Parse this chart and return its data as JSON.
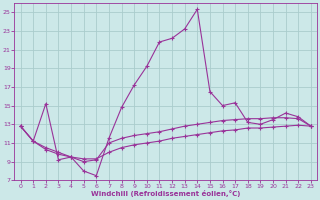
{
  "xlabel": "Windchill (Refroidissement éolien,°C)",
  "background_color": "#cce8e8",
  "grid_color": "#aacccc",
  "line_color": "#993399",
  "xlim": [
    -0.5,
    23.5
  ],
  "ylim": [
    7,
    26
  ],
  "xticks": [
    0,
    1,
    2,
    3,
    4,
    5,
    6,
    7,
    8,
    9,
    10,
    11,
    12,
    13,
    14,
    15,
    16,
    17,
    18,
    19,
    20,
    21,
    22,
    23
  ],
  "yticks": [
    7,
    9,
    11,
    13,
    15,
    17,
    19,
    21,
    23,
    25
  ],
  "line1_x": [
    0,
    1,
    2,
    3,
    4,
    5,
    6,
    7,
    8,
    9,
    10,
    11,
    12,
    13,
    14,
    15,
    16,
    17,
    18,
    19,
    20,
    21,
    22,
    23
  ],
  "line1_y": [
    12.8,
    11.2,
    15.2,
    9.2,
    9.5,
    8.0,
    7.5,
    11.5,
    14.8,
    17.2,
    19.2,
    21.8,
    22.2,
    23.2,
    25.3,
    16.5,
    15.0,
    15.3,
    13.2,
    13.0,
    13.5,
    14.2,
    13.8,
    12.8
  ],
  "line2_x": [
    0,
    1,
    2,
    3,
    4,
    5,
    6,
    7,
    8,
    9,
    10,
    11,
    12,
    13,
    14,
    15,
    16,
    17,
    18,
    19,
    20,
    21,
    22,
    23
  ],
  "line2_y": [
    12.8,
    11.2,
    10.3,
    9.8,
    9.5,
    9.3,
    9.3,
    10.0,
    10.5,
    10.8,
    11.0,
    11.2,
    11.5,
    11.7,
    11.9,
    12.1,
    12.3,
    12.4,
    12.6,
    12.6,
    12.7,
    12.8,
    12.9,
    12.8
  ],
  "line3_x": [
    0,
    1,
    2,
    3,
    4,
    5,
    6,
    7,
    8,
    9,
    10,
    11,
    12,
    13,
    14,
    15,
    16,
    17,
    18,
    19,
    20,
    21,
    22,
    23
  ],
  "line3_y": [
    12.8,
    11.2,
    10.5,
    10.0,
    9.5,
    9.0,
    9.2,
    11.0,
    11.5,
    11.8,
    12.0,
    12.2,
    12.5,
    12.8,
    13.0,
    13.2,
    13.4,
    13.5,
    13.6,
    13.6,
    13.7,
    13.7,
    13.6,
    12.8
  ]
}
